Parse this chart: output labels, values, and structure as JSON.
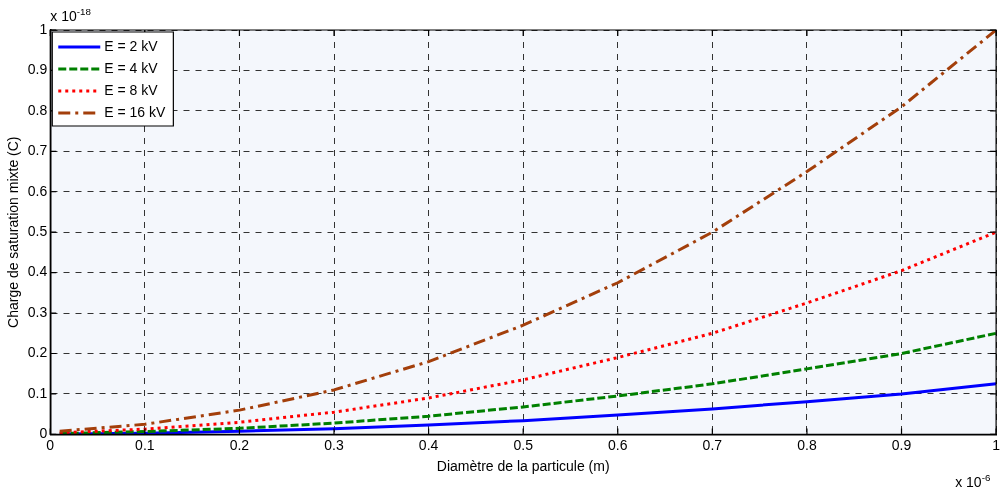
{
  "chart_data": {
    "type": "line",
    "xlabel": "Diamètre de la particule (m)",
    "ylabel": "Charge de saturation mixte (C)",
    "annotations": [
      "x 10$^{-18}$",
      "x 10$^{-6}$"
    ],
    "x": [
      0.01,
      0.1,
      0.2,
      0.3,
      0.4,
      0.5,
      0.6,
      0.7,
      0.8,
      0.9,
      1.0
    ],
    "series": [
      {
        "name": "E = 2 kV",
        "color": "#0000ff",
        "line_style": "solid",
        "values": [
          0.001,
          0.003,
          0.008,
          0.014,
          0.023,
          0.034,
          0.048,
          0.063,
          0.081,
          0.1,
          0.125
        ]
      },
      {
        "name": "E = 4 kV",
        "color": "#008000",
        "line_style": "dashed",
        "values": [
          0.002,
          0.007,
          0.015,
          0.028,
          0.045,
          0.068,
          0.095,
          0.125,
          0.162,
          0.2,
          0.25
        ]
      },
      {
        "name": "E = 8 kV",
        "color": "#ff0000",
        "line_style": "dotted",
        "values": [
          0.004,
          0.013,
          0.03,
          0.055,
          0.09,
          0.135,
          0.19,
          0.25,
          0.325,
          0.405,
          0.5
        ]
      },
      {
        "name": "E = 16 kV",
        "color": "#a33f0b",
        "line_style": "dashdot",
        "values": [
          0.008,
          0.025,
          0.06,
          0.11,
          0.18,
          0.27,
          0.375,
          0.5,
          0.65,
          0.81,
          1.0
        ]
      }
    ],
    "xlim": [
      0,
      1
    ],
    "xticks": [
      0,
      0.1,
      0.2,
      0.3,
      0.4,
      0.5,
      0.6,
      0.7,
      0.8,
      0.9,
      1
    ],
    "ylim": [
      0,
      1
    ],
    "yticks": [
      0,
      0.1,
      0.2,
      0.3,
      0.4,
      0.5,
      0.6,
      0.7,
      0.8,
      0.9,
      1
    ],
    "grid": true,
    "legend": "top left",
    "marker": "none"
  }
}
